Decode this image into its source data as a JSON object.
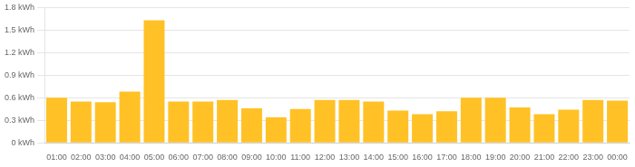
{
  "chart_data": {
    "type": "bar",
    "categories": [
      "01:00",
      "02:00",
      "03:00",
      "04:00",
      "05:00",
      "06:00",
      "07:00",
      "08:00",
      "09:00",
      "10:00",
      "11:00",
      "12:00",
      "13:00",
      "14:00",
      "15:00",
      "16:00",
      "17:00",
      "18:00",
      "19:00",
      "20:00",
      "21:00",
      "22:00",
      "23:00",
      "00:00"
    ],
    "values": [
      0.6,
      0.55,
      0.54,
      0.68,
      1.63,
      0.55,
      0.55,
      0.57,
      0.46,
      0.34,
      0.45,
      0.57,
      0.57,
      0.55,
      0.43,
      0.38,
      0.42,
      0.6,
      0.6,
      0.47,
      0.38,
      0.44,
      0.57,
      0.56
    ],
    "color": "#FFC125",
    "ylim": [
      0,
      1.8
    ],
    "yticks": [
      {
        "value": 0,
        "label": "0 kWh"
      },
      {
        "value": 0.3,
        "label": "0.3 kWh"
      },
      {
        "value": 0.6,
        "label": "0.6 kWh"
      },
      {
        "value": 0.9,
        "label": "0.9 kWh"
      },
      {
        "value": 1.2,
        "label": "1.2 kWh"
      },
      {
        "value": 1.5,
        "label": "1.5 kWh"
      },
      {
        "value": 1.8,
        "label": "1.8 kWh"
      }
    ],
    "grid": true
  }
}
